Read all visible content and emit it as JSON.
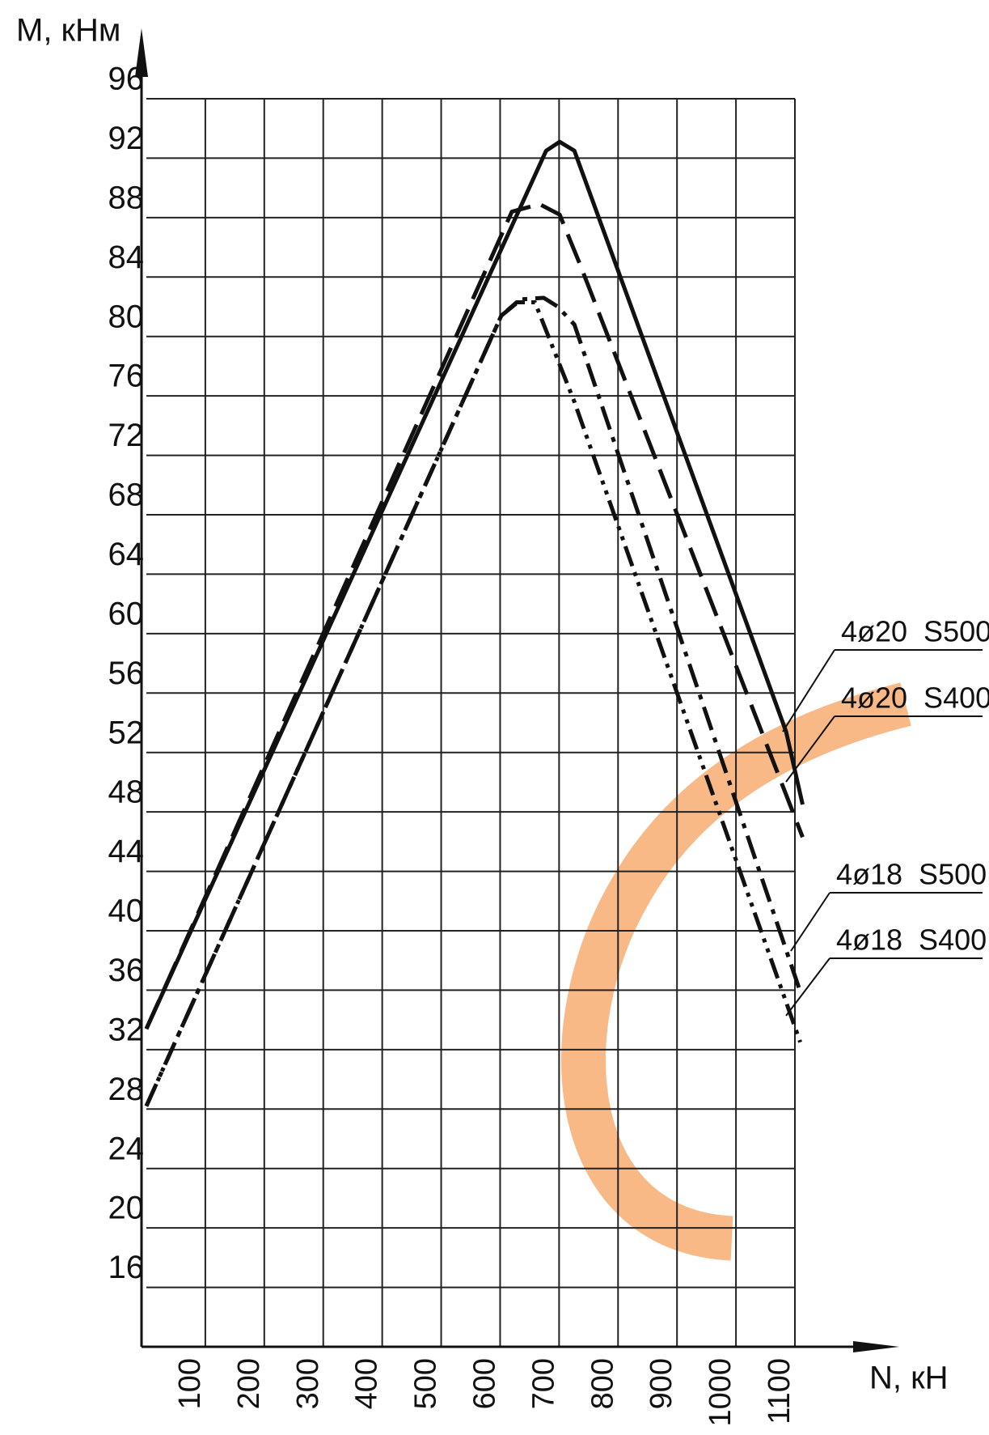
{
  "chart_data": {
    "type": "line",
    "x_label": "N, кН",
    "y_label": "M, кНм",
    "xlim": [
      0,
      1100
    ],
    "ylim": [
      12,
      96
    ],
    "xticks": [
      100,
      200,
      300,
      400,
      500,
      600,
      700,
      800,
      900,
      1000,
      1100
    ],
    "yticks": [
      16,
      20,
      24,
      28,
      32,
      36,
      40,
      44,
      48,
      52,
      56,
      60,
      64,
      68,
      72,
      76,
      80,
      84,
      88,
      92,
      96
    ],
    "grid": true,
    "series": [
      {
        "name": "4ø20  S500",
        "color": "#111111",
        "line_style": "solid",
        "x": [
          0,
          678,
          701,
          726,
          1085,
          1113
        ],
        "values": [
          33.4,
          92.5,
          93.1,
          92.5,
          53.4,
          48.5
        ]
      },
      {
        "name": "4ø20  S400",
        "color": "#111111",
        "line_style": "dashed",
        "x": [
          0,
          620,
          667,
          701,
          736,
          1113
        ],
        "values": [
          33.4,
          88.4,
          88.9,
          88.2,
          84.8,
          46.3
        ]
      },
      {
        "name": "4ø18  S500",
        "color": "#111111",
        "line_style": "dash-dot",
        "x": [
          0,
          602,
          636,
          674,
          698,
          726,
          1109
        ],
        "values": [
          28.2,
          81.4,
          82.5,
          82.6,
          82.0,
          80.8,
          35.9
        ]
      },
      {
        "name": "4ø18  S400",
        "color": "#111111",
        "line_style": "dash-dot-dot",
        "x": [
          0,
          602,
          628,
          659,
          726,
          1109
        ],
        "values": [
          28.2,
          81.4,
          82.3,
          82.3,
          75.6,
          32.5
        ]
      }
    ]
  }
}
